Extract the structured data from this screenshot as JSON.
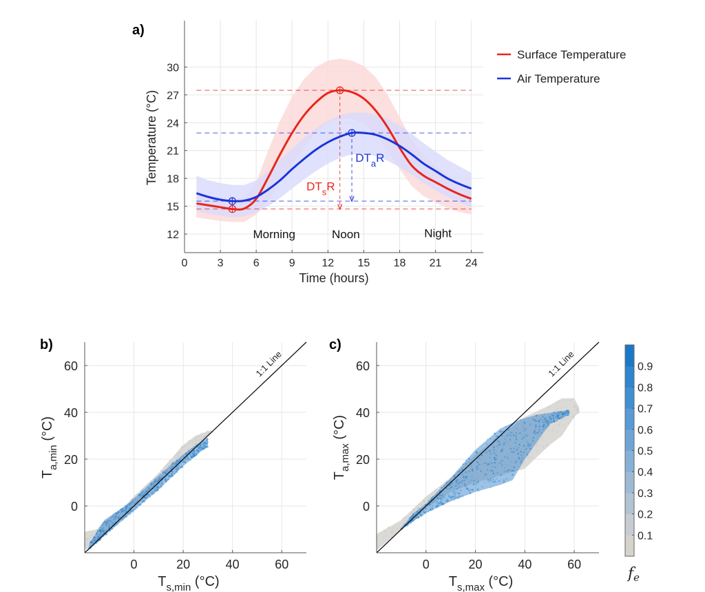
{
  "chart_data": [
    {
      "id": "a",
      "type": "line",
      "panel_label": "a)",
      "title": "",
      "xlabel": "Time (hours)",
      "ylabel": "Temperature (°C)",
      "xlim": [
        0,
        25
      ],
      "ylim": [
        10,
        35
      ],
      "xticks": [
        0,
        3,
        6,
        9,
        12,
        15,
        18,
        21,
        24
      ],
      "yticks": [
        12,
        15,
        18,
        21,
        24,
        27,
        30
      ],
      "grid": true,
      "legend_position": "right-outside-top",
      "x": [
        1,
        2,
        3,
        4,
        5,
        6,
        7,
        8,
        9,
        10,
        11,
        12,
        13,
        14,
        15,
        16,
        17,
        18,
        19,
        20,
        21,
        22,
        23,
        24
      ],
      "series": [
        {
          "name": "Surface Temperature",
          "color": "#e8261b",
          "band_color": "#fcd9d9",
          "values": [
            15.3,
            15.1,
            14.9,
            14.7,
            14.75,
            15.8,
            18.1,
            20.6,
            22.9,
            24.8,
            26.2,
            27.2,
            27.5,
            27.3,
            26.6,
            25.3,
            23.5,
            21.3,
            19.4,
            18.3,
            17.6,
            16.9,
            16.3,
            15.8
          ],
          "band_upper": [
            16.4,
            16.2,
            16.0,
            15.8,
            15.9,
            17.6,
            21.0,
            24.2,
            26.8,
            28.7,
            30.0,
            30.7,
            30.9,
            30.7,
            30.1,
            28.9,
            27.0,
            24.6,
            22.2,
            20.5,
            19.4,
            18.4,
            17.5,
            16.9
          ],
          "band_lower": [
            13.8,
            13.6,
            13.4,
            13.3,
            13.3,
            14.1,
            15.6,
            17.5,
            19.5,
            21.3,
            22.9,
            24.0,
            24.5,
            24.4,
            23.9,
            22.8,
            21.0,
            19.0,
            17.2,
            16.1,
            15.4,
            14.8,
            14.4,
            14.1
          ],
          "marker": {
            "type": "min",
            "x": 4,
            "y": 14.7
          },
          "marker_max": {
            "type": "max",
            "x": 13,
            "y": 27.5
          },
          "range_label": {
            "main": "DT",
            "sub": "s",
            "suffix": "R"
          }
        },
        {
          "name": "Air Temperature",
          "color": "#1a35d8",
          "band_color": "#dadcfb",
          "values": [
            16.4,
            16.0,
            15.7,
            15.55,
            15.6,
            16.0,
            16.8,
            17.8,
            19.0,
            20.1,
            21.1,
            21.9,
            22.5,
            22.9,
            22.9,
            22.7,
            22.2,
            21.5,
            20.6,
            19.6,
            18.8,
            18.0,
            17.4,
            16.9
          ],
          "band_upper": [
            18.3,
            17.8,
            17.5,
            17.3,
            17.3,
            17.8,
            18.8,
            20.0,
            21.2,
            22.4,
            23.4,
            24.2,
            24.8,
            25.1,
            25.1,
            24.9,
            24.4,
            23.7,
            22.8,
            21.8,
            20.9,
            20.0,
            19.3,
            18.6
          ],
          "band_lower": [
            14.5,
            14.2,
            14.0,
            13.8,
            13.9,
            14.3,
            15.0,
            15.9,
            16.9,
            17.9,
            18.8,
            19.6,
            20.2,
            20.6,
            20.6,
            20.4,
            19.9,
            19.2,
            18.4,
            17.5,
            16.7,
            16.0,
            15.4,
            14.9
          ],
          "marker": {
            "type": "min",
            "x": 4,
            "y": 15.55
          },
          "marker_max": {
            "type": "max",
            "x": 14,
            "y": 22.9
          },
          "range_label": {
            "main": "DT",
            "sub": "a",
            "suffix": "R"
          }
        }
      ],
      "annotations": [
        {
          "text": "Morning",
          "x": 7.5,
          "y": 12
        },
        {
          "text": "Noon",
          "x": 13.5,
          "y": 12
        },
        {
          "text": "Night",
          "x": 21.2,
          "y": 12.1
        }
      ]
    },
    {
      "id": "b",
      "type": "scatter",
      "panel_label": "b)",
      "xlabel": {
        "main": "T",
        "sub": "s,min",
        "unit": " (°C)"
      },
      "ylabel": {
        "main": "T",
        "sub": "a,min",
        "unit": " (°C)"
      },
      "xlim": [
        -20,
        70
      ],
      "ylim": [
        -20,
        70
      ],
      "xticks": [
        0,
        20,
        40,
        60
      ],
      "yticks": [
        0,
        20,
        40,
        60
      ],
      "grid": true,
      "reference_line": {
        "label": "1:1 Line",
        "slope": 1,
        "intercept": 0
      },
      "color_variable": "f_e",
      "clouds": [
        {
          "name": "low f_e (grey)",
          "fe": 0.05,
          "upper": [
            [
              -20,
              -11
            ],
            [
              -15,
              -10
            ],
            [
              -10,
              -5
            ],
            [
              -5,
              -2
            ],
            [
              0,
              4
            ],
            [
              10,
              14
            ],
            [
              20,
              26
            ],
            [
              25,
              30
            ],
            [
              30,
              32
            ],
            [
              32,
              32
            ]
          ],
          "lower": [
            [
              -20,
              -19
            ],
            [
              -10,
              -10
            ],
            [
              0,
              0
            ],
            [
              10,
              10
            ],
            [
              20,
              20
            ],
            [
              30,
              30
            ],
            [
              32,
              32
            ]
          ]
        },
        {
          "name": "high f_e (blue)",
          "fe": 0.9,
          "upper": [
            [
              -18,
              -16
            ],
            [
              -12,
              -6
            ],
            [
              -5,
              -1
            ],
            [
              0,
              3
            ],
            [
              10,
              13
            ],
            [
              20,
              22
            ],
            [
              28,
              28
            ],
            [
              30,
              29
            ]
          ],
          "lower": [
            [
              -19,
              -19.5
            ],
            [
              -10,
              -11
            ],
            [
              0,
              -2
            ],
            [
              10,
              7
            ],
            [
              20,
              17
            ],
            [
              28,
              24
            ],
            [
              30,
              25
            ]
          ]
        }
      ]
    },
    {
      "id": "c",
      "type": "scatter",
      "panel_label": "c)",
      "xlabel": {
        "main": "T",
        "sub": "s,max",
        "unit": " (°C)"
      },
      "ylabel": {
        "main": "T",
        "sub": "a,max",
        "unit": " (°C)"
      },
      "xlim": [
        -20,
        70
      ],
      "ylim": [
        -20,
        70
      ],
      "xticks": [
        0,
        20,
        40,
        60
      ],
      "yticks": [
        0,
        20,
        40,
        60
      ],
      "grid": true,
      "reference_line": {
        "label": "1:1 Line",
        "slope": 1,
        "intercept": 0
      },
      "color_variable": "f_e",
      "clouds": [
        {
          "name": "low f_e (grey)",
          "fe": 0.05,
          "upper": [
            [
              -20,
              -12
            ],
            [
              -15,
              -9
            ],
            [
              -10,
              -6
            ],
            [
              -5,
              -1
            ],
            [
              0,
              4
            ],
            [
              10,
              12
            ],
            [
              20,
              22
            ],
            [
              30,
              30
            ],
            [
              40,
              38
            ],
            [
              50,
              43
            ],
            [
              55,
              46
            ],
            [
              60,
              46
            ],
            [
              62,
              42
            ]
          ],
          "lower": [
            [
              -20,
              -19
            ],
            [
              -10,
              -10
            ],
            [
              -5,
              -6
            ],
            [
              0,
              -1
            ],
            [
              10,
              6
            ],
            [
              20,
              10
            ],
            [
              30,
              13
            ],
            [
              40,
              16
            ],
            [
              50,
              26
            ],
            [
              55,
              30
            ],
            [
              60,
              38
            ],
            [
              62,
              40
            ]
          ]
        },
        {
          "name": "high f_e (blue)",
          "fe": 0.9,
          "upper": [
            [
              -12,
              -12
            ],
            [
              -5,
              -3
            ],
            [
              0,
              1
            ],
            [
              10,
              12
            ],
            [
              20,
              24
            ],
            [
              30,
              33
            ],
            [
              38,
              37
            ],
            [
              45,
              39
            ],
            [
              58,
              41
            ]
          ],
          "lower": [
            [
              -10,
              -10
            ],
            [
              0,
              -3
            ],
            [
              10,
              2
            ],
            [
              20,
              6
            ],
            [
              30,
              9
            ],
            [
              35,
              11
            ],
            [
              40,
              20
            ],
            [
              50,
              35
            ],
            [
              58,
              39
            ]
          ]
        }
      ]
    }
  ],
  "colorbar": {
    "label_main": "f",
    "label_sub": "e",
    "range": [
      0,
      1
    ],
    "ticks": [
      "0.1",
      "0.2",
      "0.3",
      "0.4",
      "0.5",
      "0.6",
      "0.7",
      "0.8",
      "0.9"
    ],
    "colors": [
      "#d6d2cc",
      "#c6ccd2",
      "#b2c4d3",
      "#9cbad5",
      "#86b0d6",
      "#6fa5d6",
      "#589bd6",
      "#4290d4",
      "#2e85d0",
      "#1a78c8"
    ]
  }
}
